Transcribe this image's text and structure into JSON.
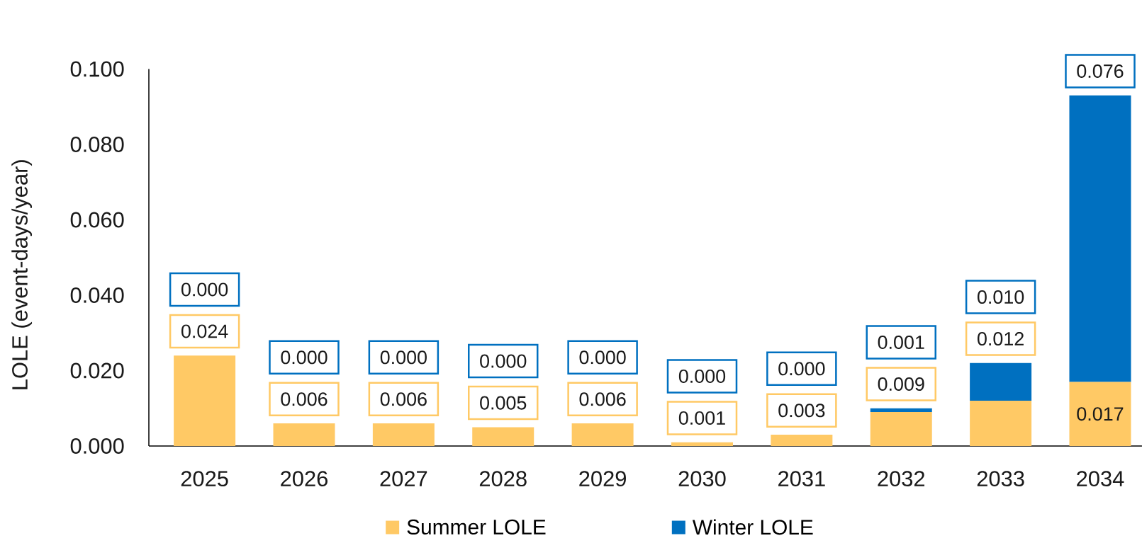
{
  "chart_data": {
    "type": "bar",
    "stacked": true,
    "ylabel": "LOLE (event-days/year)",
    "categories": [
      "2025",
      "2026",
      "2027",
      "2028",
      "2029",
      "2030",
      "2031",
      "2032",
      "2033",
      "2034"
    ],
    "series": [
      {
        "name": "Summer LOLE",
        "color": "#ffc965",
        "values": [
          0.024,
          0.006,
          0.006,
          0.005,
          0.006,
          0.001,
          0.003,
          0.009,
          0.012,
          0.017
        ],
        "value_labels": [
          "0.024",
          "0.006",
          "0.006",
          "0.005",
          "0.006",
          "0.001",
          "0.003",
          "0.009",
          "0.012",
          "0.017"
        ]
      },
      {
        "name": "Winter LOLE",
        "color": "#0070c0",
        "values": [
          0,
          0,
          0,
          0,
          0,
          0,
          0,
          0.001,
          0.01,
          0.076
        ],
        "value_labels": [
          "0.000",
          "0.000",
          "0.000",
          "0.000",
          "0.000",
          "0.000",
          "0.000",
          "0.001",
          "0.010",
          "0.076"
        ]
      }
    ],
    "ylim": [
      0,
      0.1
    ],
    "yticks": [
      {
        "value": 0,
        "label": "0.000"
      },
      {
        "value": 0.02,
        "label": "0.020"
      },
      {
        "value": 0.04,
        "label": "0.040"
      },
      {
        "value": 0.06,
        "label": "0.060"
      },
      {
        "value": 0.08,
        "label": "0.080"
      },
      {
        "value": 0.1,
        "label": "0.100"
      }
    ],
    "legend": "bottom"
  }
}
